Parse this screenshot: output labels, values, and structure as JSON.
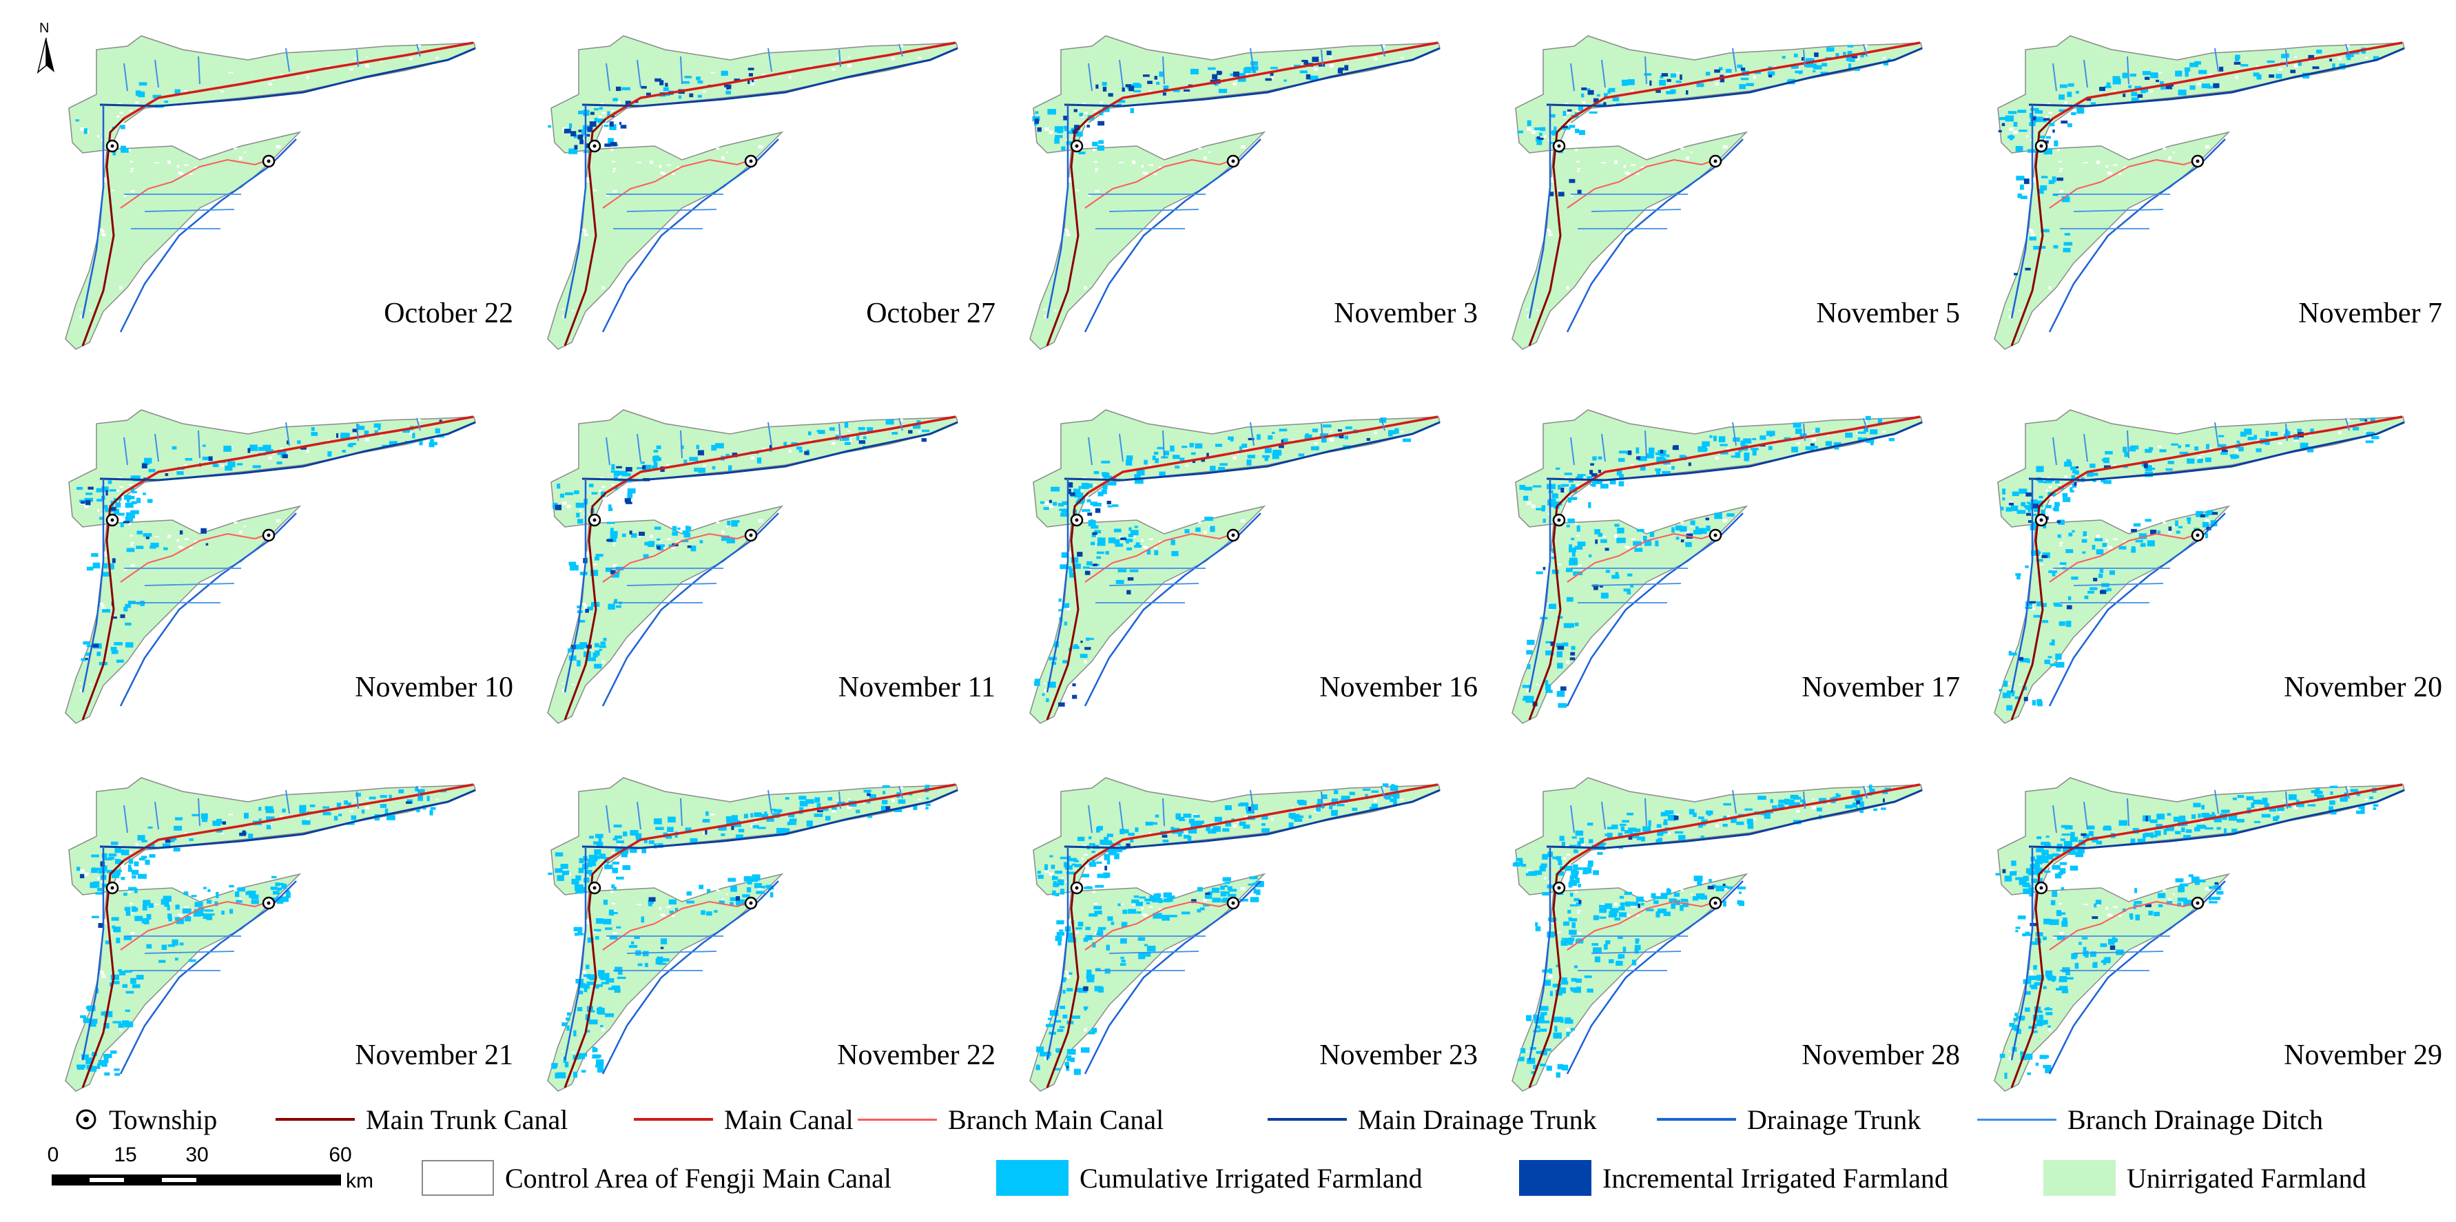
{
  "north_label": "N",
  "panels": [
    {
      "label": "October 22",
      "stage": 0
    },
    {
      "label": "October 27",
      "stage": 1
    },
    {
      "label": "November 3",
      "stage": 2
    },
    {
      "label": "November 5",
      "stage": 3
    },
    {
      "label": "November 7",
      "stage": 4
    },
    {
      "label": "November 10",
      "stage": 5
    },
    {
      "label": "November 11",
      "stage": 6
    },
    {
      "label": "November 16",
      "stage": 7
    },
    {
      "label": "November 17",
      "stage": 8
    },
    {
      "label": "November 20",
      "stage": 9
    },
    {
      "label": "November 21",
      "stage": 10
    },
    {
      "label": "November 22",
      "stage": 11
    },
    {
      "label": "November 23",
      "stage": 12
    },
    {
      "label": "November 28",
      "stage": 13
    },
    {
      "label": "November 29",
      "stage": 14
    }
  ],
  "legend": {
    "township": "Township",
    "main_trunk_canal": "Main Trunk Canal",
    "main_canal": "Main Canal",
    "branch_main_canal": "Branch Main Canal",
    "main_drainage_trunk": "Main Drainage Trunk",
    "drainage_trunk": "Drainage Trunk",
    "branch_drainage_ditch": "Branch Drainage Ditch",
    "control_area": "Control Area of Fengji Main Canal",
    "cumulative": "Cumulative Irrigated Farmland",
    "incremental": "Incremental Irrigated Farmland",
    "unirrigated": "Unirrigated Farmland"
  },
  "scale": {
    "ticks": [
      "0",
      "15",
      "30",
      "60"
    ],
    "unit": "km"
  },
  "colors": {
    "unirrigated": "#c6f5c6",
    "cumulative": "#00c5ff",
    "incremental": "#0042aa",
    "main_trunk_canal": "#8b0000",
    "main_canal": "#d61a1a",
    "branch_main_canal": "#ff5a5a",
    "main_drainage_trunk": "#0b3f9e",
    "drainage_trunk": "#1c63d6",
    "branch_drainage_ditch": "#3c8fe8",
    "outline": "#8a8a8a"
  }
}
